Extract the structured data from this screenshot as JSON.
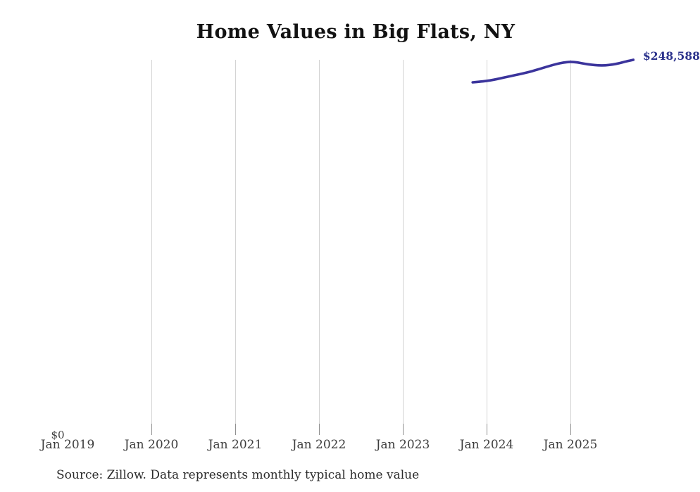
{
  "page": {
    "background": "#ffffff"
  },
  "chart": {
    "title": "Home Values in Big Flats, NY",
    "source_note": "Source: Zillow. Data represents monthly typical home value",
    "y_zero_label": "$0",
    "end_value_label": "$248,588",
    "x_tick_labels": [
      "Jan 2019",
      "Jan 2020",
      "Jan 2021",
      "Jan 2022",
      "Jan 2023",
      "Jan 2024",
      "Jan 2025"
    ],
    "colors": {
      "line": "#3b349c",
      "end_label": "#2c338c",
      "gridline": "#d3d3d3",
      "tick": "#909090",
      "axis_text": "#3d3d3d",
      "title_text": "#121212",
      "source_text": "#2b2b2b"
    }
  },
  "chart_data": {
    "type": "line",
    "title": "Home Values in Big Flats, NY",
    "series_name": "Monthly typical home value (USD)",
    "x": [
      "Nov 2023",
      "Dec 2023",
      "Jan 2024",
      "Feb 2024",
      "Mar 2024",
      "Apr 2024",
      "May 2024",
      "Jun 2024",
      "Jul 2024",
      "Aug 2024",
      "Sep 2024",
      "Oct 2024",
      "Nov 2024",
      "Dec 2024",
      "Jan 2025",
      "Feb 2025",
      "Mar 2025",
      "Apr 2025",
      "May 2025",
      "Jun 2025",
      "Jul 2025",
      "Aug 2025",
      "Sep 2025",
      "Oct 2025"
    ],
    "values": [
      233600,
      234000,
      234500,
      235300,
      236300,
      237300,
      238300,
      239300,
      240400,
      241700,
      243100,
      244500,
      245800,
      246800,
      247300,
      246900,
      246000,
      245300,
      244900,
      244900,
      245400,
      246300,
      247600,
      248588
    ],
    "xlabel": "",
    "ylabel": "",
    "x_axis_ticks": [
      "Jan 2019",
      "Jan 2020",
      "Jan 2021",
      "Jan 2022",
      "Jan 2023",
      "Jan 2024",
      "Jan 2025"
    ],
    "ylim": [
      0,
      250000
    ],
    "grid": "vertical-only",
    "legend": "none",
    "annotations": [
      {
        "text": "$248,588",
        "position": "line-end"
      },
      {
        "text": "$0",
        "position": "y-axis-origin"
      }
    ]
  }
}
